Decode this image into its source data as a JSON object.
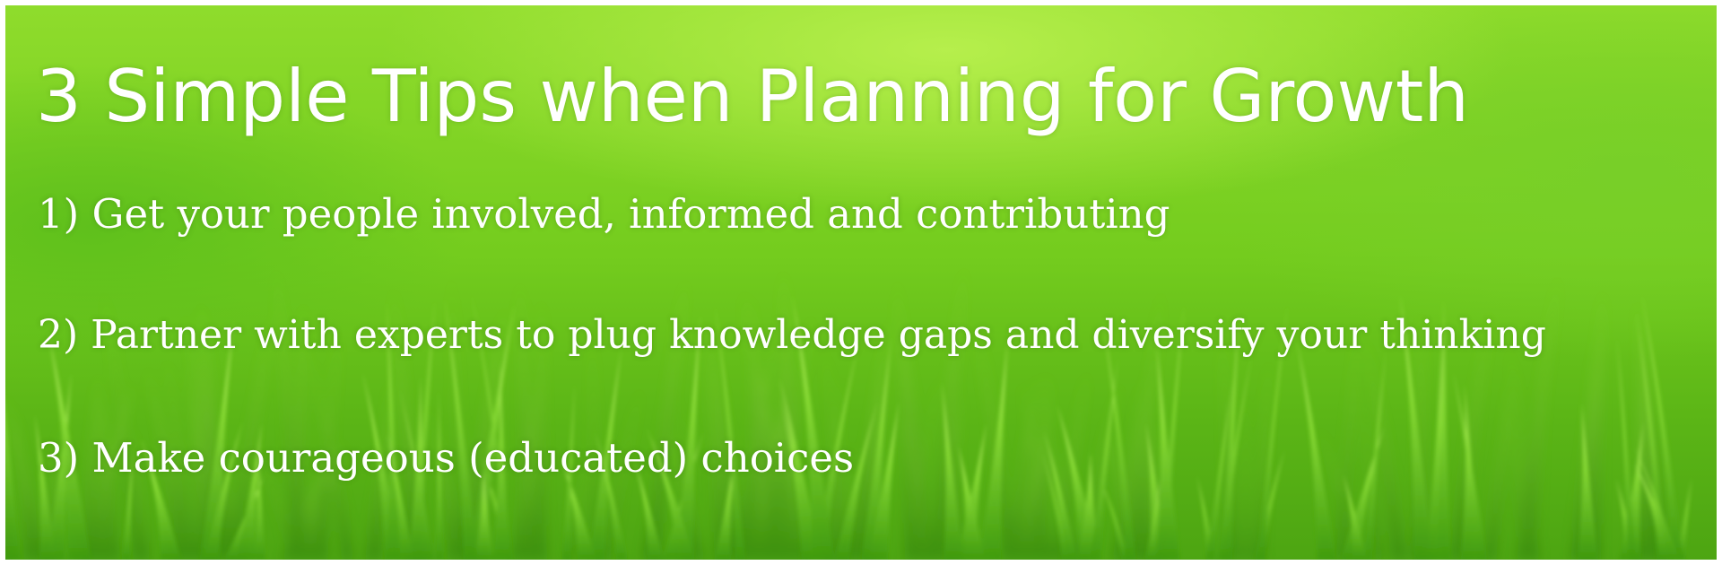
{
  "banner": {
    "title": "3 Simple Tips when Planning for Growth",
    "tips": [
      "1) Get your people involved, informed and contributing",
      "2) Partner with experts to plug knowledge gaps and diversify your thinking",
      "3) Make courageous (educated) choices"
    ],
    "background": "green-grass-photo",
    "text_color": "#ffffff",
    "accent_green": "#7ad12a"
  }
}
